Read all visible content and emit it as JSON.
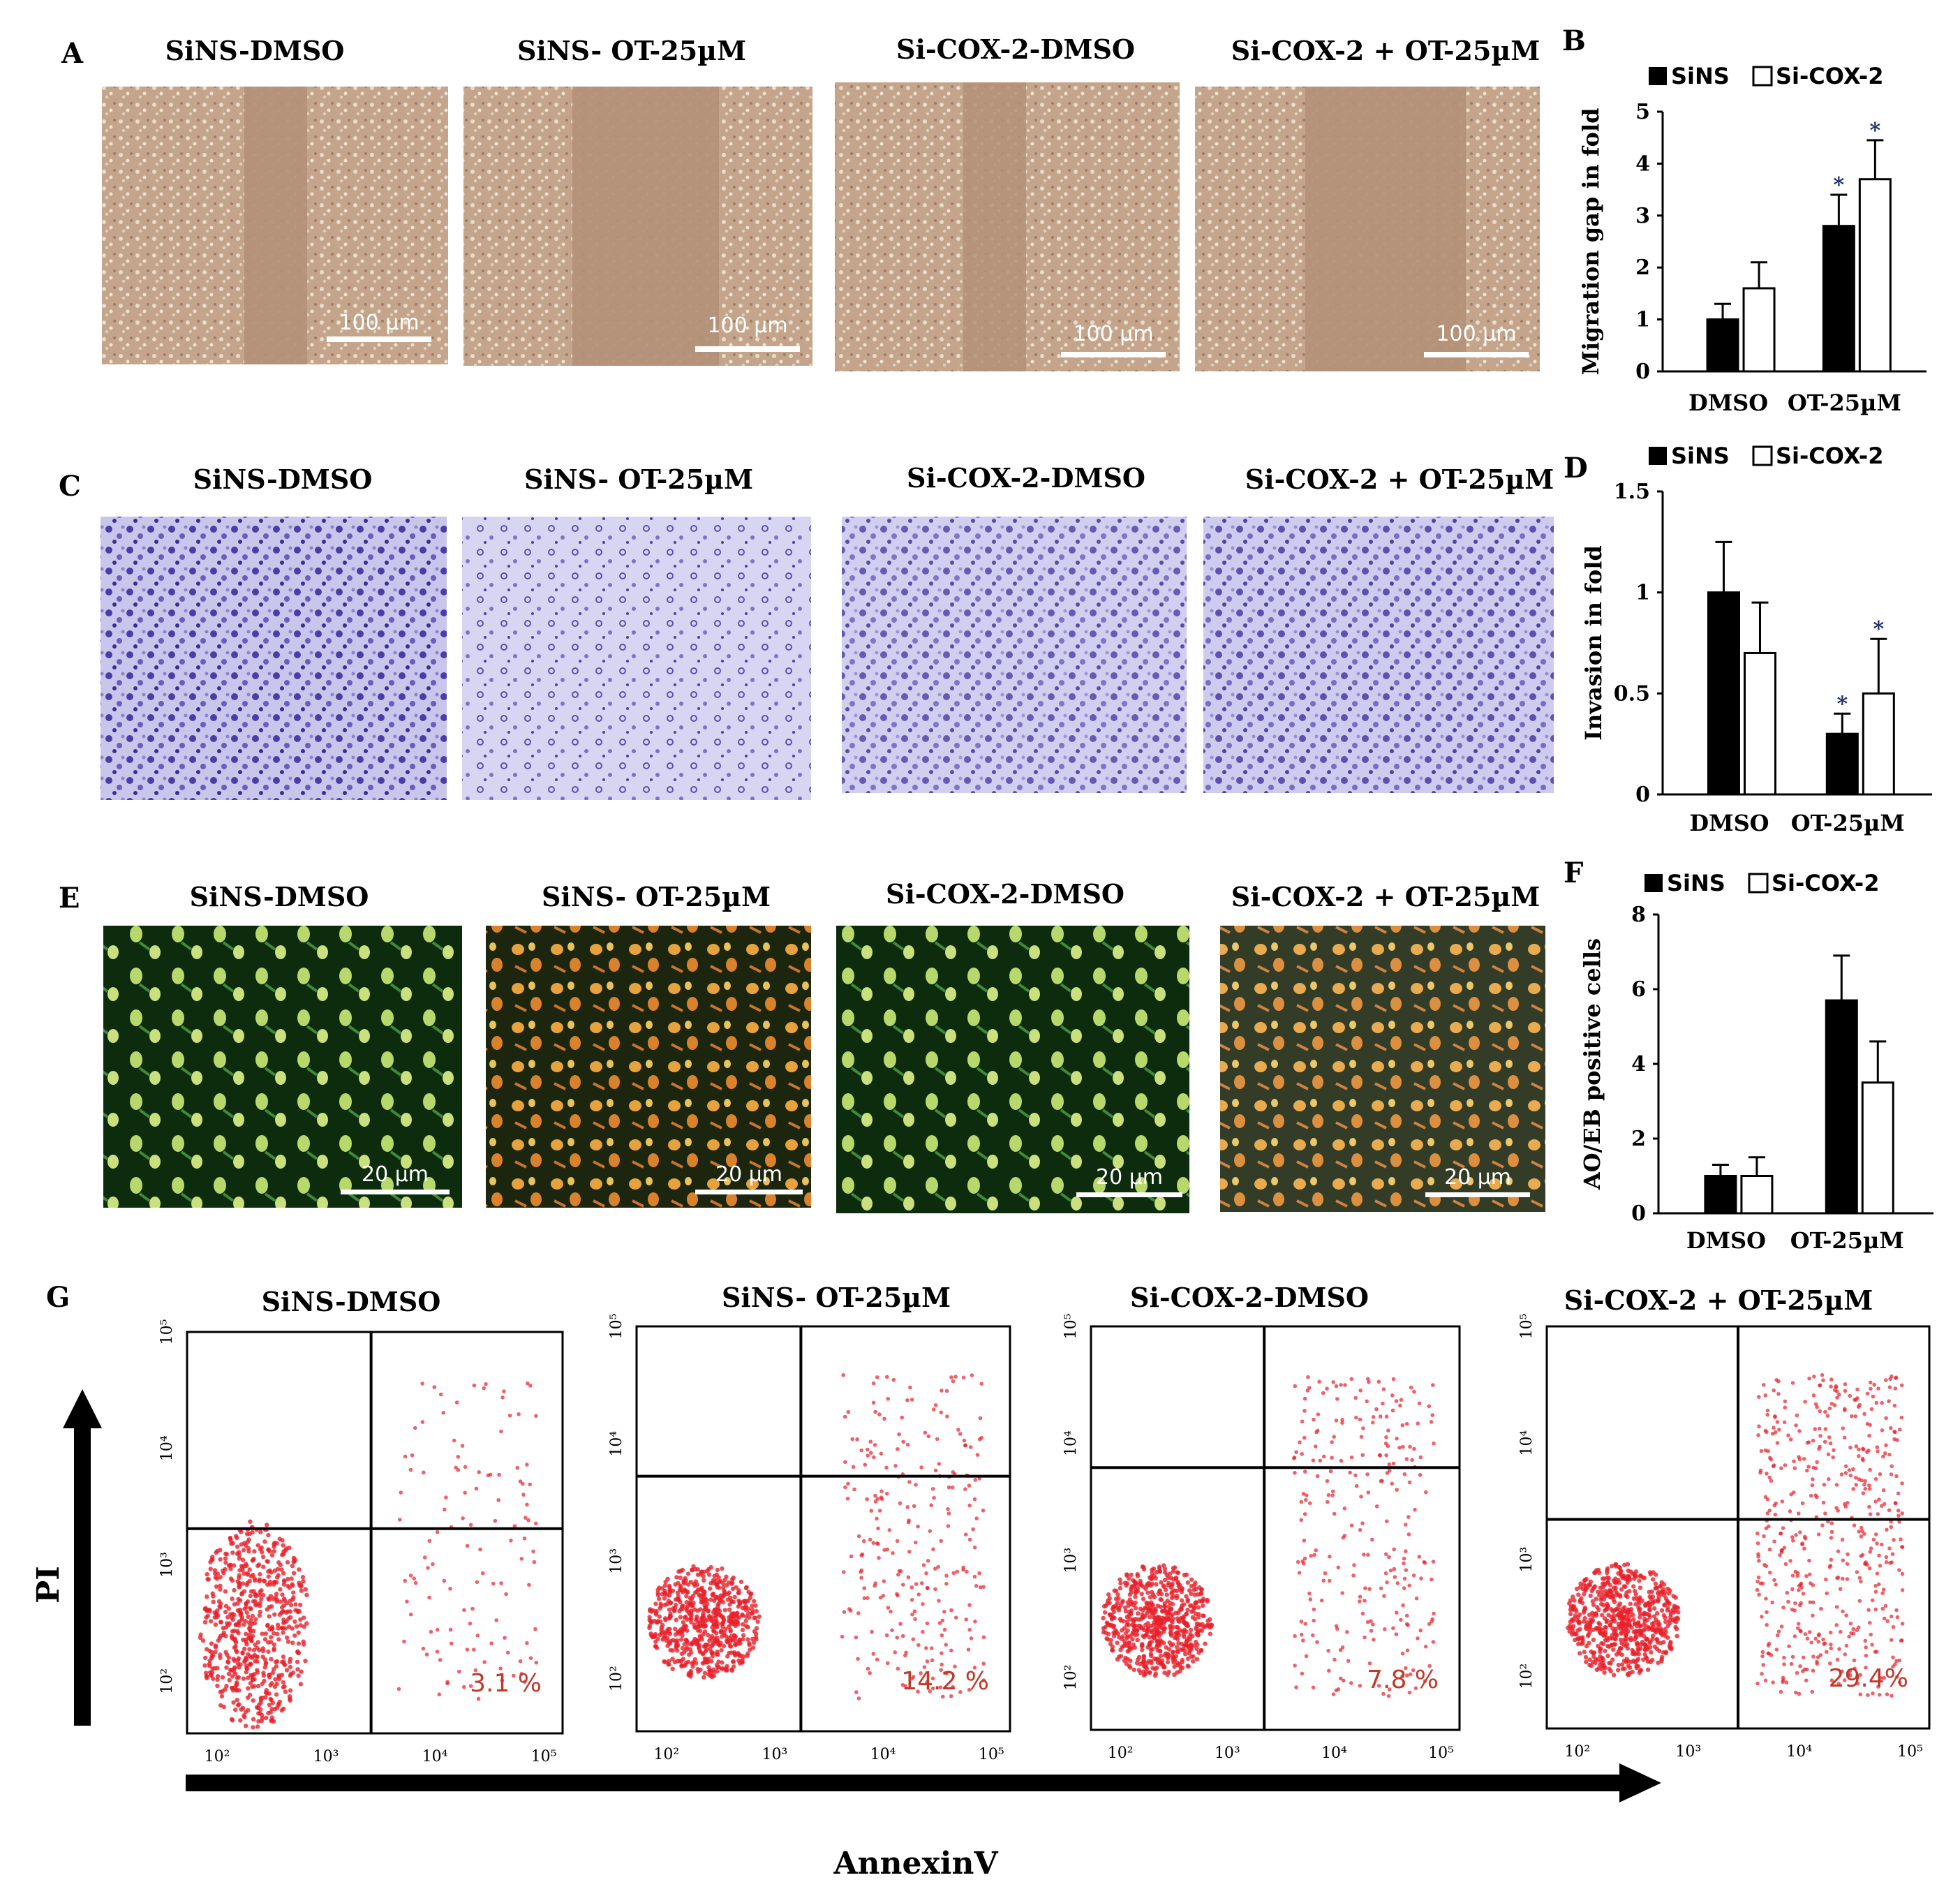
{
  "panel_letters": {
    "a": "A",
    "b": "B",
    "c": "C",
    "d": "D",
    "e": "E",
    "f": "F",
    "g": "G"
  },
  "conditions": [
    "SiNS-DMSO",
    "SiNS-  OT-25µM",
    "Si-COX-2-DMSO",
    "Si-COX-2 + OT-25µM"
  ],
  "scale_bars": {
    "migration": "100 µm",
    "fluorescence": "20 µm"
  },
  "flow": {
    "percentages": [
      "3.1 %",
      "14.2 %",
      "7.8 %",
      "29.4%"
    ],
    "y_label": "PI",
    "x_label": "AnnexinV",
    "tick_labels": [
      "10²",
      "10³",
      "10⁴",
      "10⁵"
    ]
  },
  "colors": {
    "migration_bg": "#b8957a",
    "crystal_violet": "#5b4fb0",
    "fluor_bg": "#0c2a0c",
    "flow_dots": "#e8202a"
  },
  "chart_data": [
    {
      "type": "bar",
      "panel": "B",
      "title": "",
      "ylabel": "Migration  gap in fold",
      "categories": [
        "DMSO",
        "OT-25µM"
      ],
      "ylim": [
        0,
        5
      ],
      "yticks": [
        0,
        1,
        2,
        3,
        4,
        5
      ],
      "series": [
        {
          "name": "SiNS",
          "values": [
            1.0,
            2.8
          ],
          "errors": [
            0.3,
            0.6
          ],
          "sig": [
            false,
            true
          ]
        },
        {
          "name": "Si-COX-2",
          "values": [
            1.6,
            3.7
          ],
          "errors": [
            0.5,
            0.75
          ],
          "sig": [
            false,
            true
          ]
        }
      ],
      "legend": "top"
    },
    {
      "type": "bar",
      "panel": "D",
      "title": "",
      "ylabel": "Invasion  in fold",
      "categories": [
        "DMSO",
        "OT-25µM"
      ],
      "ylim": [
        0,
        1.5
      ],
      "yticks": [
        0,
        0.5,
        1,
        1.5
      ],
      "series": [
        {
          "name": "SiNS",
          "values": [
            1.0,
            0.3
          ],
          "errors": [
            0.25,
            0.1
          ],
          "sig": [
            false,
            true
          ]
        },
        {
          "name": "Si-COX-2",
          "values": [
            0.7,
            0.5
          ],
          "errors": [
            0.25,
            0.27
          ],
          "sig": [
            false,
            true
          ]
        }
      ],
      "legend": "top"
    },
    {
      "type": "bar",
      "panel": "F",
      "title": "",
      "ylabel": "AO/EB  positive  cells",
      "categories": [
        "DMSO",
        "OT-25µM"
      ],
      "ylim": [
        0,
        8
      ],
      "yticks": [
        0,
        2,
        4,
        6,
        8
      ],
      "series": [
        {
          "name": "SiNS",
          "values": [
            1.0,
            5.7
          ],
          "errors": [
            0.3,
            1.2
          ],
          "sig": [
            false,
            false
          ]
        },
        {
          "name": "Si-COX-2",
          "values": [
            1.0,
            3.5
          ],
          "errors": [
            0.5,
            1.1
          ],
          "sig": [
            false,
            false
          ]
        }
      ],
      "legend": "top"
    }
  ]
}
